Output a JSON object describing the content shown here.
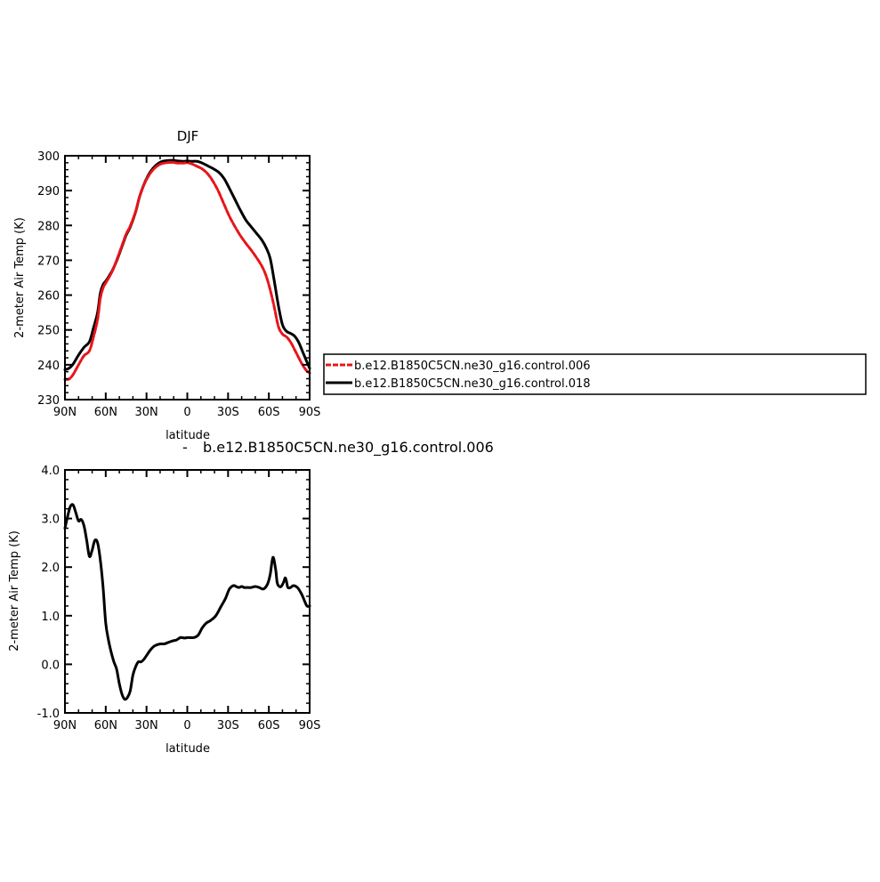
{
  "chart_data": [
    {
      "type": "line",
      "title": "DJF",
      "xlabel": "latitude",
      "ylabel": "2-meter Air Temp (K)",
      "xlim": [
        90,
        -90
      ],
      "ylim": [
        230,
        300
      ],
      "x_ticks": [
        90,
        60,
        30,
        0,
        -30,
        -60,
        -90
      ],
      "x_tick_labels": [
        "90N",
        "60N",
        "30N",
        "0",
        "30S",
        "60S",
        "90S"
      ],
      "y_ticks": [
        230,
        240,
        250,
        260,
        270,
        280,
        290,
        300
      ],
      "y_tick_labels": [
        "230",
        "240",
        "250",
        "260",
        "270",
        "280",
        "290",
        "300"
      ],
      "legend_position": "right",
      "series": [
        {
          "name": "b.e12.B1850C5CN.ne30_g16.control.006",
          "color": "#e8141a",
          "dash": "dashed",
          "x": [
            90,
            87,
            84,
            80,
            76,
            72,
            69,
            66,
            64,
            62,
            60,
            58,
            55,
            52,
            48,
            45,
            42,
            38,
            35,
            31,
            27,
            23,
            19,
            15,
            11,
            7,
            3,
            0,
            -3,
            -7,
            -11,
            -15,
            -19,
            -23,
            -27,
            -31,
            -35,
            -39,
            -43,
            -47,
            -51,
            -55,
            -58,
            -61,
            -64,
            -67,
            -70,
            -73,
            -76,
            -79,
            -82,
            -85,
            -88,
            -90
          ],
          "y": [
            235.8,
            235.9,
            237.2,
            240.0,
            242.6,
            244.0,
            248.0,
            253.0,
            259.0,
            262.0,
            263.5,
            264.8,
            267.0,
            270.0,
            274.3,
            277.5,
            279.8,
            284.0,
            288.4,
            292.4,
            295.1,
            296.8,
            297.7,
            298.0,
            298.1,
            297.9,
            297.9,
            298.0,
            297.7,
            297.0,
            296.2,
            294.8,
            292.6,
            289.7,
            286.1,
            282.6,
            279.7,
            277.1,
            274.9,
            272.9,
            270.7,
            268.2,
            265.5,
            261.5,
            256.5,
            251.0,
            248.8,
            248.0,
            246.5,
            244.3,
            242.0,
            239.8,
            238.2,
            237.6
          ]
        },
        {
          "name": "b.e12.B1850C5CN.ne30_g16.control.018",
          "color": "#000000",
          "dash": "solid",
          "x": [
            90,
            87,
            84,
            80,
            76,
            72,
            69,
            66,
            64,
            62,
            60,
            58,
            55,
            52,
            48,
            45,
            42,
            38,
            35,
            31,
            27,
            23,
            19,
            15,
            11,
            7,
            3,
            0,
            -3,
            -7,
            -11,
            -15,
            -19,
            -23,
            -27,
            -31,
            -35,
            -39,
            -43,
            -47,
            -51,
            -55,
            -58,
            -61,
            -64,
            -67,
            -70,
            -73,
            -76,
            -79,
            -82,
            -85,
            -88,
            -90
          ],
          "y": [
            238.6,
            239.0,
            240.2,
            242.8,
            245.0,
            246.6,
            250.6,
            255.0,
            260.5,
            263.0,
            264.0,
            265.2,
            267.2,
            269.8,
            274.0,
            277.2,
            279.5,
            283.9,
            288.4,
            292.6,
            295.5,
            297.3,
            298.3,
            298.6,
            298.7,
            298.5,
            298.4,
            298.5,
            298.4,
            298.4,
            297.9,
            297.1,
            296.3,
            295.3,
            293.5,
            290.6,
            287.5,
            284.4,
            281.6,
            279.6,
            277.7,
            275.7,
            273.6,
            270.5,
            264.0,
            257.0,
            251.5,
            249.6,
            249.0,
            248.2,
            246.4,
            243.6,
            240.8,
            239.0
          ]
        }
      ]
    },
    {
      "type": "line",
      "title": "b.e12.B1850C5CN.ne30_g16.control.006",
      "title_marker": "-",
      "xlabel": "latitude",
      "ylabel": "2-meter Air Temp (K)",
      "xlim": [
        90,
        -90
      ],
      "ylim": [
        -1.0,
        4.0
      ],
      "x_ticks": [
        90,
        60,
        30,
        0,
        -30,
        -60,
        -90
      ],
      "x_tick_labels": [
        "90N",
        "60N",
        "30N",
        "0",
        "30S",
        "60S",
        "90S"
      ],
      "y_ticks": [
        -1.0,
        0.0,
        1.0,
        2.0,
        3.0,
        4.0
      ],
      "y_tick_labels": [
        "-1.0",
        "0.0",
        "1.0",
        "2.0",
        "3.0",
        "4.0"
      ],
      "series": [
        {
          "color": "#000000",
          "dash": "solid",
          "x": [
            90,
            88,
            86,
            84,
            82,
            80,
            78,
            76,
            74,
            72,
            70,
            68,
            66,
            64,
            62,
            60,
            58,
            56,
            54,
            52,
            50,
            48,
            46,
            44,
            42,
            40,
            38,
            36,
            34,
            32,
            30,
            27,
            24,
            20,
            17,
            14,
            11,
            8,
            5,
            2,
            0,
            -2,
            -5,
            -8,
            -11,
            -14,
            -17,
            -21,
            -25,
            -28,
            -31,
            -34,
            -36,
            -38,
            -40,
            -42,
            -44,
            -47,
            -50,
            -53,
            -56,
            -59,
            -61,
            -63,
            -65,
            -66,
            -67,
            -69,
            -71,
            -72,
            -73,
            -74,
            -76,
            -78,
            -81,
            -84,
            -86,
            -88,
            -90
          ],
          "y": [
            2.8,
            3.05,
            3.25,
            3.28,
            3.12,
            2.95,
            2.98,
            2.85,
            2.55,
            2.22,
            2.35,
            2.55,
            2.5,
            2.15,
            1.6,
            0.85,
            0.5,
            0.25,
            0.05,
            -0.1,
            -0.4,
            -0.62,
            -0.72,
            -0.68,
            -0.55,
            -0.22,
            -0.05,
            0.05,
            0.05,
            0.1,
            0.18,
            0.3,
            0.38,
            0.42,
            0.42,
            0.45,
            0.48,
            0.5,
            0.55,
            0.54,
            0.55,
            0.55,
            0.55,
            0.6,
            0.75,
            0.85,
            0.9,
            1.0,
            1.2,
            1.35,
            1.55,
            1.62,
            1.6,
            1.58,
            1.6,
            1.58,
            1.58,
            1.58,
            1.6,
            1.58,
            1.55,
            1.65,
            1.85,
            2.2,
            1.95,
            1.7,
            1.62,
            1.6,
            1.7,
            1.78,
            1.7,
            1.58,
            1.58,
            1.62,
            1.58,
            1.45,
            1.32,
            1.2,
            1.2
          ]
        }
      ]
    }
  ]
}
